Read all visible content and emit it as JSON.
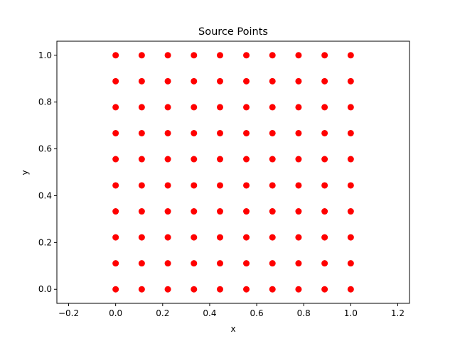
{
  "chart_data": {
    "type": "scatter",
    "title": "Source Points",
    "xlabel": "x",
    "ylabel": "y",
    "xlim": [
      -0.25,
      1.25
    ],
    "ylim": [
      -0.06,
      1.06
    ],
    "xticks": [
      -0.2,
      0.0,
      0.2,
      0.4,
      0.6,
      0.8,
      1.0,
      1.2
    ],
    "yticks": [
      0.0,
      0.2,
      0.4,
      0.6,
      0.8,
      1.0
    ],
    "xtick_labels": [
      "−0.2",
      "0.0",
      "0.2",
      "0.4",
      "0.6",
      "0.8",
      "1.0",
      "1.2"
    ],
    "ytick_labels": [
      "0.0",
      "0.2",
      "0.4",
      "0.6",
      "0.8",
      "1.0"
    ],
    "grid": false,
    "marker_color": "#ff0000",
    "series": [
      {
        "x": [
          0.0,
          0.111,
          0.222,
          0.333,
          0.444,
          0.556,
          0.667,
          0.778,
          0.889,
          1.0,
          0.0,
          0.111,
          0.222,
          0.333,
          0.444,
          0.556,
          0.667,
          0.778,
          0.889,
          1.0,
          0.0,
          0.111,
          0.222,
          0.333,
          0.444,
          0.556,
          0.667,
          0.778,
          0.889,
          1.0,
          0.0,
          0.111,
          0.222,
          0.333,
          0.444,
          0.556,
          0.667,
          0.778,
          0.889,
          1.0,
          0.0,
          0.111,
          0.222,
          0.333,
          0.444,
          0.556,
          0.667,
          0.778,
          0.889,
          1.0,
          0.0,
          0.111,
          0.222,
          0.333,
          0.444,
          0.556,
          0.667,
          0.778,
          0.889,
          1.0,
          0.0,
          0.111,
          0.222,
          0.333,
          0.444,
          0.556,
          0.667,
          0.778,
          0.889,
          1.0,
          0.0,
          0.111,
          0.222,
          0.333,
          0.444,
          0.556,
          0.667,
          0.778,
          0.889,
          1.0,
          0.0,
          0.111,
          0.222,
          0.333,
          0.444,
          0.556,
          0.667,
          0.778,
          0.889,
          1.0,
          0.0,
          0.111,
          0.222,
          0.333,
          0.444,
          0.556,
          0.667,
          0.778,
          0.889,
          1.0
        ],
        "y": [
          0.0,
          0.0,
          0.0,
          0.0,
          0.0,
          0.0,
          0.0,
          0.0,
          0.0,
          0.0,
          0.111,
          0.111,
          0.111,
          0.111,
          0.111,
          0.111,
          0.111,
          0.111,
          0.111,
          0.111,
          0.222,
          0.222,
          0.222,
          0.222,
          0.222,
          0.222,
          0.222,
          0.222,
          0.222,
          0.222,
          0.333,
          0.333,
          0.333,
          0.333,
          0.333,
          0.333,
          0.333,
          0.333,
          0.333,
          0.333,
          0.444,
          0.444,
          0.444,
          0.444,
          0.444,
          0.444,
          0.444,
          0.444,
          0.444,
          0.444,
          0.556,
          0.556,
          0.556,
          0.556,
          0.556,
          0.556,
          0.556,
          0.556,
          0.556,
          0.556,
          0.667,
          0.667,
          0.667,
          0.667,
          0.667,
          0.667,
          0.667,
          0.667,
          0.667,
          0.667,
          0.778,
          0.778,
          0.778,
          0.778,
          0.778,
          0.778,
          0.778,
          0.778,
          0.778,
          0.778,
          0.889,
          0.889,
          0.889,
          0.889,
          0.889,
          0.889,
          0.889,
          0.889,
          0.889,
          0.889,
          1.0,
          1.0,
          1.0,
          1.0,
          1.0,
          1.0,
          1.0,
          1.0,
          1.0,
          1.0
        ]
      }
    ]
  }
}
